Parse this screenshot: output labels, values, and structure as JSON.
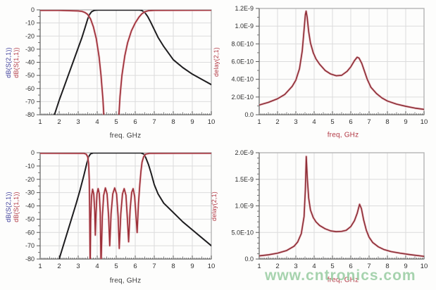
{
  "watermark": {
    "text": "www.cntronics.com"
  },
  "colors": {
    "s21_curve": "#1e1d1f",
    "s11_curve": "#9d2f38",
    "s11_halo": "#eab5ba",
    "delay_curve": "#8f2f38",
    "label_blue": "#3a3a99",
    "label_red": "#b23844",
    "axis_text": "#2e2e2e",
    "grid": "#dcdcdc",
    "frame": "#b5b5b5",
    "axis_line": "#5a5a5a"
  },
  "chart_data": [
    {
      "type": "line",
      "position": "top-left",
      "xlabel": "freq. GHz",
      "ylabel_primary": "dB(S(2,1))",
      "ylabel_secondary": "dB(S(1,1))",
      "xlim": [
        1,
        10
      ],
      "ylim": [
        -80,
        0
      ],
      "grid": true,
      "x_ticks": [
        1,
        2,
        3,
        4,
        5,
        6,
        7,
        8,
        9,
        10
      ],
      "x_minor_step": 0.1,
      "y_minor_count": 1,
      "y_ticks": [
        {
          "v": 0,
          "label": "0"
        },
        {
          "v": -10,
          "label": "-10"
        },
        {
          "v": -20,
          "label": "-20"
        },
        {
          "v": -30,
          "label": "-30"
        },
        {
          "v": -40,
          "label": "-40"
        },
        {
          "v": -50,
          "label": "-50"
        },
        {
          "v": -60,
          "label": "-60"
        },
        {
          "v": -70,
          "label": "-70"
        },
        {
          "v": -80,
          "label": "-80"
        }
      ],
      "series": [
        {
          "name": "dB(S(2,1))",
          "color_key": "s21",
          "points": [
            [
              1.75,
              -80
            ],
            [
              2,
              -69
            ],
            [
              2.25,
              -59
            ],
            [
              2.5,
              -49
            ],
            [
              2.75,
              -39
            ],
            [
              3,
              -29
            ],
            [
              3.2,
              -21
            ],
            [
              3.35,
              -14
            ],
            [
              3.5,
              -7
            ],
            [
              3.6,
              -3.5
            ],
            [
              3.7,
              -1.5
            ],
            [
              3.85,
              -0.4
            ],
            [
              4,
              -0.1
            ],
            [
              6.2,
              -0.1
            ],
            [
              6.35,
              -0.5
            ],
            [
              6.5,
              -2
            ],
            [
              6.65,
              -5
            ],
            [
              6.8,
              -9
            ],
            [
              7,
              -15
            ],
            [
              7.2,
              -21
            ],
            [
              7.5,
              -28
            ],
            [
              7.8,
              -34
            ],
            [
              8,
              -38
            ],
            [
              8.5,
              -44
            ],
            [
              9,
              -49
            ],
            [
              9.5,
              -53
            ],
            [
              10,
              -57
            ]
          ]
        },
        {
          "name": "dB(S(1,1))",
          "color_key": "s11",
          "points": [
            [
              1,
              -0.4
            ],
            [
              2,
              -0.4
            ],
            [
              3,
              -0.8
            ],
            [
              3.2,
              -1.2
            ],
            [
              3.35,
              -2
            ],
            [
              3.5,
              -3.5
            ],
            [
              3.65,
              -7
            ],
            [
              3.8,
              -13
            ],
            [
              3.95,
              -22
            ],
            [
              4.1,
              -36
            ],
            [
              4.2,
              -50
            ],
            [
              4.3,
              -68
            ],
            [
              4.37,
              -86
            ],
            [
              5.12,
              -86
            ],
            [
              5.2,
              -66
            ],
            [
              5.3,
              -50
            ],
            [
              5.45,
              -35
            ],
            [
              5.6,
              -25
            ],
            [
              5.8,
              -16
            ],
            [
              6,
              -10
            ],
            [
              6.2,
              -5.5
            ],
            [
              6.35,
              -3
            ],
            [
              6.5,
              -1.5
            ],
            [
              6.7,
              -0.6
            ],
            [
              7,
              -0.3
            ],
            [
              10,
              -0.2
            ]
          ]
        }
      ]
    },
    {
      "type": "line",
      "position": "top-right",
      "xlabel": "freq, GHz",
      "ylabel_primary": "delay(2,1)",
      "xlim": [
        1,
        10
      ],
      "ylim": [
        0,
        1.2e-09
      ],
      "grid": true,
      "x_ticks": [
        1,
        2,
        3,
        4,
        5,
        6,
        7,
        8,
        9,
        10
      ],
      "x_minor_step": 0.1,
      "y_minor_count": 1,
      "y_ticks": [
        {
          "v": 0,
          "label": "0.0"
        },
        {
          "v": 2e-10,
          "label": "2.0E-10"
        },
        {
          "v": 4e-10,
          "label": "4.0E-10"
        },
        {
          "v": 6e-10,
          "label": "6.0E-10"
        },
        {
          "v": 8e-10,
          "label": "8.0E-10"
        },
        {
          "v": 1e-09,
          "label": "1.0E-9"
        },
        {
          "v": 1.2e-09,
          "label": "1.2E-9"
        }
      ],
      "series": [
        {
          "name": "delay(2,1)",
          "color_key": "delay",
          "points": [
            [
              1,
              1.1e-10
            ],
            [
              1.5,
              1.4e-10
            ],
            [
              2,
              1.8e-10
            ],
            [
              2.4,
              2.3e-10
            ],
            [
              2.8,
              3.2e-10
            ],
            [
              3,
              3.9e-10
            ],
            [
              3.2,
              5.2e-10
            ],
            [
              3.35,
              7.2e-10
            ],
            [
              3.45,
              9.6e-10
            ],
            [
              3.52,
              1.13e-09
            ],
            [
              3.56,
              1.17e-09
            ],
            [
              3.62,
              1.1e-09
            ],
            [
              3.7,
              9.4e-10
            ],
            [
              3.8,
              8.1e-10
            ],
            [
              3.95,
              7e-10
            ],
            [
              4.1,
              6.3e-10
            ],
            [
              4.3,
              5.7e-10
            ],
            [
              4.6,
              5e-10
            ],
            [
              4.9,
              4.6e-10
            ],
            [
              5.2,
              4.4e-10
            ],
            [
              5.5,
              4.45e-10
            ],
            [
              5.8,
              4.9e-10
            ],
            [
              6,
              5.4e-10
            ],
            [
              6.2,
              6.1e-10
            ],
            [
              6.35,
              6.5e-10
            ],
            [
              6.45,
              6.4e-10
            ],
            [
              6.6,
              5.8e-10
            ],
            [
              6.75,
              4.9e-10
            ],
            [
              6.9,
              4e-10
            ],
            [
              7.1,
              3.1e-10
            ],
            [
              7.4,
              2.4e-10
            ],
            [
              7.7,
              1.9e-10
            ],
            [
              8,
              1.55e-10
            ],
            [
              8.5,
              1.2e-10
            ],
            [
              9,
              9.5e-11
            ],
            [
              9.5,
              7.5e-11
            ],
            [
              10,
              6e-11
            ]
          ]
        }
      ]
    },
    {
      "type": "line",
      "position": "bottom-left",
      "xlabel": "freq, GHz",
      "ylabel_primary": "dB(S(2,1))",
      "ylabel_secondary": "dB(S(1,1))",
      "xlim": [
        1,
        10
      ],
      "ylim": [
        -80,
        0
      ],
      "grid": true,
      "x_ticks": [
        1,
        2,
        3,
        4,
        5,
        6,
        7,
        8,
        9,
        10
      ],
      "x_minor_step": 0.1,
      "y_minor_count": 1,
      "y_ticks": [
        {
          "v": 0,
          "label": "0"
        },
        {
          "v": -10,
          "label": "-10"
        },
        {
          "v": -20,
          "label": "-20"
        },
        {
          "v": -30,
          "label": "-30"
        },
        {
          "v": -40,
          "label": "-40"
        },
        {
          "v": -50,
          "label": "-50"
        },
        {
          "v": -60,
          "label": "-60"
        },
        {
          "v": -70,
          "label": "-70"
        },
        {
          "v": -80,
          "label": "-80"
        }
      ],
      "series": [
        {
          "name": "dB(S(2,1))",
          "color_key": "s21",
          "points": [
            [
              2,
              -80
            ],
            [
              2.3,
              -66
            ],
            [
              2.6,
              -52
            ],
            [
              2.9,
              -38
            ],
            [
              3.1,
              -28
            ],
            [
              3.3,
              -17
            ],
            [
              3.45,
              -8
            ],
            [
              3.55,
              -3
            ],
            [
              3.65,
              -0.8
            ],
            [
              3.8,
              -0.1
            ],
            [
              6.3,
              -0.1
            ],
            [
              6.45,
              -1
            ],
            [
              6.55,
              -3.5
            ],
            [
              6.7,
              -9
            ],
            [
              6.85,
              -16
            ],
            [
              7,
              -24
            ],
            [
              7.2,
              -31
            ],
            [
              7.5,
              -38
            ],
            [
              8,
              -45
            ],
            [
              8.5,
              -52
            ],
            [
              9,
              -58
            ],
            [
              9.5,
              -64
            ],
            [
              10,
              -70
            ]
          ]
        },
        {
          "name": "dB(S(1,1))",
          "color_key": "s11",
          "points": [
            [
              1,
              -0.3
            ],
            [
              3.3,
              -0.4
            ],
            [
              3.42,
              -1
            ],
            [
              3.5,
              -3
            ],
            [
              3.55,
              -8
            ],
            [
              3.58,
              -20
            ],
            [
              3.6,
              -40
            ],
            [
              3.63,
              -86
            ],
            [
              3.66,
              -50
            ],
            [
              3.7,
              -33
            ],
            [
              3.76,
              -27.5
            ],
            [
              3.82,
              -31
            ],
            [
              3.87,
              -44
            ],
            [
              3.9,
              -62
            ],
            [
              3.94,
              -45
            ],
            [
              3.99,
              -31
            ],
            [
              4.05,
              -27
            ],
            [
              4.11,
              -31
            ],
            [
              4.16,
              -45
            ],
            [
              4.2,
              -86
            ],
            [
              4.27,
              -48
            ],
            [
              4.34,
              -32
            ],
            [
              4.43,
              -26.5
            ],
            [
              4.52,
              -31
            ],
            [
              4.6,
              -48
            ],
            [
              4.66,
              -70
            ],
            [
              4.73,
              -46
            ],
            [
              4.82,
              -31
            ],
            [
              4.92,
              -26.5
            ],
            [
              5.02,
              -31
            ],
            [
              5.1,
              -48
            ],
            [
              5.16,
              -72
            ],
            [
              5.24,
              -46
            ],
            [
              5.33,
              -31
            ],
            [
              5.42,
              -27
            ],
            [
              5.51,
              -32
            ],
            [
              5.59,
              -50
            ],
            [
              5.65,
              -67
            ],
            [
              5.73,
              -43
            ],
            [
              5.81,
              -30
            ],
            [
              5.89,
              -27
            ],
            [
              5.97,
              -33
            ],
            [
              6.04,
              -48
            ],
            [
              6.1,
              -60
            ],
            [
              6.17,
              -38
            ],
            [
              6.24,
              -24
            ],
            [
              6.3,
              -14
            ],
            [
              6.36,
              -7
            ],
            [
              6.44,
              -3
            ],
            [
              6.55,
              -1
            ],
            [
              6.75,
              -0.4
            ],
            [
              10,
              -0.3
            ]
          ]
        }
      ]
    },
    {
      "type": "line",
      "position": "bottom-right",
      "xlabel": "freq, GHz",
      "ylabel_primary": "delay(2,1)",
      "xlim": [
        1,
        10
      ],
      "ylim": [
        0,
        2e-09
      ],
      "grid": true,
      "x_ticks": [
        1,
        2,
        3,
        4,
        5,
        6,
        7,
        8,
        9,
        10
      ],
      "x_minor_step": 0.1,
      "y_minor_count": 4,
      "y_ticks": [
        {
          "v": 0,
          "label": "0.0"
        },
        {
          "v": 5e-10,
          "label": "5.0E-10"
        },
        {
          "v": 1e-09,
          "label": "1.0E-9"
        },
        {
          "v": 1.5e-09,
          "label": "1.5E-9"
        },
        {
          "v": 2e-09,
          "label": "2.0E-9"
        }
      ],
      "series": [
        {
          "name": "delay(2,1)",
          "color_key": "delay",
          "points": [
            [
              1,
              6e-11
            ],
            [
              1.5,
              8e-11
            ],
            [
              2,
              1.1e-10
            ],
            [
              2.5,
              1.6e-10
            ],
            [
              2.9,
              2.4e-10
            ],
            [
              3.1,
              3.2e-10
            ],
            [
              3.3,
              4.8e-10
            ],
            [
              3.45,
              8e-10
            ],
            [
              3.52,
              1.3e-09
            ],
            [
              3.57,
              1.93e-09
            ],
            [
              3.63,
              1.5e-09
            ],
            [
              3.7,
              1.15e-09
            ],
            [
              3.8,
              9.2e-10
            ],
            [
              3.95,
              7.8e-10
            ],
            [
              4.1,
              7e-10
            ],
            [
              4.3,
              6.3e-10
            ],
            [
              4.6,
              5.7e-10
            ],
            [
              4.9,
              5.3e-10
            ],
            [
              5.2,
              5.15e-10
            ],
            [
              5.5,
              5.2e-10
            ],
            [
              5.75,
              5.4e-10
            ],
            [
              6,
              6.1e-10
            ],
            [
              6.2,
              7.2e-10
            ],
            [
              6.35,
              8.6e-10
            ],
            [
              6.48,
              1.03e-09
            ],
            [
              6.58,
              9.5e-10
            ],
            [
              6.7,
              7.4e-10
            ],
            [
              6.85,
              5.4e-10
            ],
            [
              7,
              4.1e-10
            ],
            [
              7.2,
              3.1e-10
            ],
            [
              7.5,
              2.3e-10
            ],
            [
              7.8,
              1.8e-10
            ],
            [
              8.2,
              1.4e-10
            ],
            [
              8.7,
              1.1e-10
            ],
            [
              9.2,
              8.5e-11
            ],
            [
              10,
              5e-11
            ]
          ]
        }
      ]
    }
  ]
}
